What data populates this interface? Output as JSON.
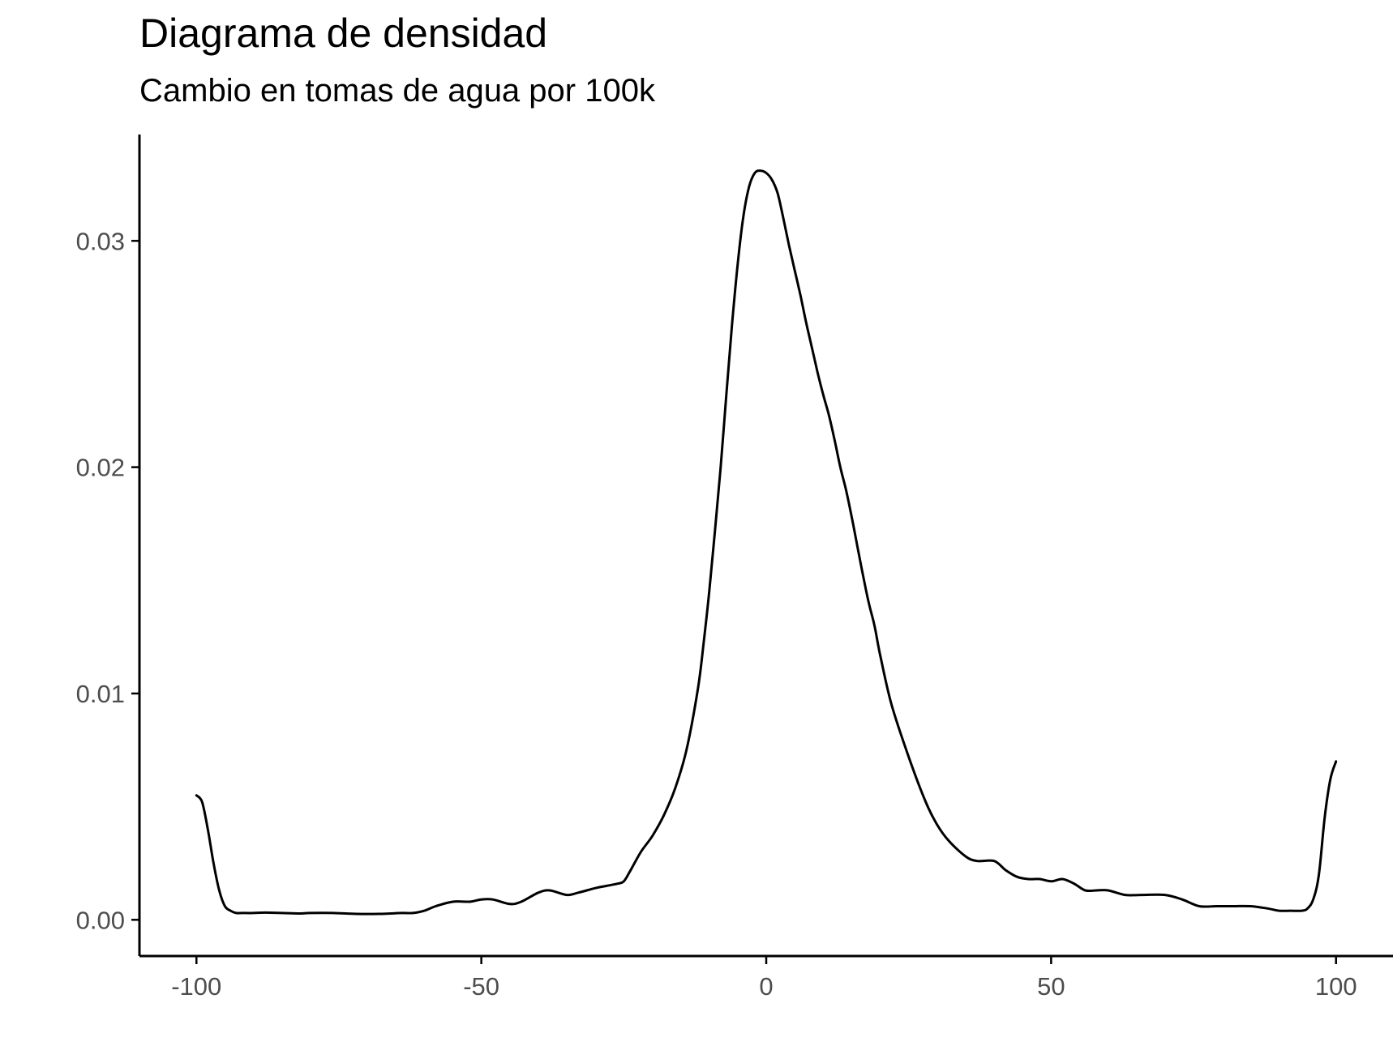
{
  "chart_data": {
    "type": "line",
    "title": "Diagrama de densidad",
    "subtitle": "Cambio en tomas de agua por 100k",
    "xlabel": "",
    "ylabel": "",
    "xlim": [
      -110,
      110
    ],
    "ylim": [
      -0.0016,
      0.0347
    ],
    "x_ticks": [
      -100,
      -50,
      0,
      50,
      100
    ],
    "x_tick_labels": [
      "-100",
      "-50",
      "0",
      "50",
      "100"
    ],
    "y_ticks": [
      0,
      0.01,
      0.02,
      0.03
    ],
    "y_tick_labels": [
      "0.00",
      "0.01",
      "0.02",
      "0.03"
    ],
    "grid": false,
    "legend": "none",
    "line_color": "#000000",
    "series": [
      {
        "x": [
          -100,
          -99,
          -98,
          -97,
          -96,
          -95,
          -94,
          -93,
          -92,
          -90,
          -88,
          -85,
          -82,
          -80,
          -76,
          -72,
          -68,
          -64,
          -62,
          -60,
          -58,
          -55,
          -52,
          -50,
          -48,
          -45,
          -43,
          -40,
          -38,
          -35,
          -33,
          -30,
          -28,
          -26,
          -25,
          -24,
          -22,
          -20,
          -18,
          -16,
          -14,
          -12,
          -11,
          -10,
          -9,
          -8,
          -7,
          -6,
          -5,
          -4,
          -3,
          -2,
          -1,
          0,
          1,
          2,
          3,
          4,
          5,
          6,
          7,
          8,
          9,
          10,
          11,
          12,
          13,
          14,
          15,
          16,
          17,
          18,
          19,
          20,
          22,
          25,
          28,
          30,
          32,
          35,
          37,
          40,
          42,
          44,
          46,
          48,
          50,
          52,
          54,
          56,
          58,
          60,
          63,
          66,
          70,
          73,
          76,
          79,
          82,
          85,
          88,
          90,
          92,
          94,
          95,
          96,
          97,
          98,
          99,
          100
        ],
        "y": [
          0.0055,
          0.0052,
          0.004,
          0.0025,
          0.0013,
          0.0006,
          0.0004,
          0.0003,
          0.0003,
          0.0003,
          0.00032,
          0.0003,
          0.00028,
          0.0003,
          0.0003,
          0.00026,
          0.00026,
          0.0003,
          0.0003,
          0.0004,
          0.0006,
          0.0008,
          0.0008,
          0.0009,
          0.0009,
          0.0007,
          0.0008,
          0.0012,
          0.0013,
          0.0011,
          0.0012,
          0.0014,
          0.0015,
          0.0016,
          0.0017,
          0.0021,
          0.003,
          0.0037,
          0.0046,
          0.0058,
          0.0075,
          0.0102,
          0.0122,
          0.0145,
          0.0172,
          0.02,
          0.0232,
          0.0263,
          0.029,
          0.0311,
          0.0324,
          0.033,
          0.0331,
          0.033,
          0.0327,
          0.0321,
          0.031,
          0.0298,
          0.0287,
          0.0276,
          0.0264,
          0.0253,
          0.0242,
          0.0232,
          0.0223,
          0.0212,
          0.02,
          0.019,
          0.0178,
          0.0165,
          0.0152,
          0.014,
          0.013,
          0.0117,
          0.0095,
          0.0072,
          0.0052,
          0.0042,
          0.0035,
          0.0028,
          0.0026,
          0.0026,
          0.0022,
          0.0019,
          0.0018,
          0.0018,
          0.0017,
          0.0018,
          0.0016,
          0.0013,
          0.0013,
          0.0013,
          0.0011,
          0.0011,
          0.0011,
          0.0009,
          0.0006,
          0.0006,
          0.0006,
          0.0006,
          0.0005,
          0.0004,
          0.0004,
          0.0004,
          0.0005,
          0.0009,
          0.002,
          0.0045,
          0.0062,
          0.007
        ]
      }
    ]
  }
}
